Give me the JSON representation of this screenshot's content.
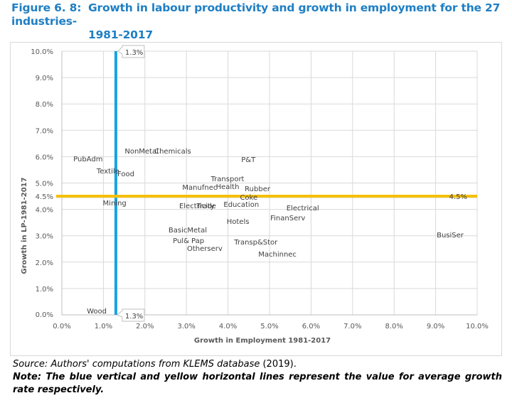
{
  "figure": {
    "number": "Figure 6. 8:",
    "title_line1": "Growth in labour productivity and growth in employment for the 27 industries-",
    "title_line2": "1981-2017"
  },
  "chart_data": {
    "type": "scatter",
    "title": "Growth in labour productivity and growth in employment for the 27 industries-1981-2017",
    "xlabel": "Growth in Employment 1981-2017",
    "ylabel": "Growth in LP-1981-2017",
    "xlim": [
      0,
      10
    ],
    "ylim": [
      0,
      10
    ],
    "x_unit": "%",
    "y_unit": "%",
    "grid": true,
    "x_ticks": [
      "0.0%",
      "1.0%",
      "2.0%",
      "3.0%",
      "4.0%",
      "5.0%",
      "6.0%",
      "7.0%",
      "8.0%",
      "9.0%",
      "10.0%"
    ],
    "y_ticks": [
      "0.0%",
      "1.0%",
      "2.0%",
      "3.0%",
      "4.0%",
      "5.0%",
      "6.0%",
      "7.0%",
      "8.0%",
      "9.0%",
      "10.0%"
    ],
    "extra_y_tick": "4.5%",
    "points": [
      {
        "label": "PubAdm",
        "x": 0.63,
        "y": 5.93
      },
      {
        "label": "Textile",
        "x": 1.11,
        "y": 5.47
      },
      {
        "label": "Food",
        "x": 1.54,
        "y": 5.36
      },
      {
        "label": "NonMetal",
        "x": 1.92,
        "y": 6.22
      },
      {
        "label": "Chemicals",
        "x": 2.67,
        "y": 6.22
      },
      {
        "label": "P&T",
        "x": 4.49,
        "y": 5.9
      },
      {
        "label": "Transport",
        "x": 3.99,
        "y": 5.18
      },
      {
        "label": "Manufnec",
        "x": 3.32,
        "y": 4.85
      },
      {
        "label": "Health",
        "x": 3.99,
        "y": 4.88
      },
      {
        "label": "Rubber",
        "x": 4.71,
        "y": 4.8
      },
      {
        "label": "Coke",
        "x": 4.5,
        "y": 4.47
      },
      {
        "label": "Mining",
        "x": 1.27,
        "y": 4.26
      },
      {
        "label": "Electricity",
        "x": 3.25,
        "y": 4.15
      },
      {
        "label": "Trade",
        "x": 3.48,
        "y": 4.15
      },
      {
        "label": "Education",
        "x": 4.32,
        "y": 4.2
      },
      {
        "label": "Electrical",
        "x": 5.8,
        "y": 4.07
      },
      {
        "label": "FinanServ",
        "x": 5.44,
        "y": 3.69
      },
      {
        "label": "Hotels",
        "x": 4.24,
        "y": 3.56
      },
      {
        "label": "BasicMetal",
        "x": 3.03,
        "y": 3.23
      },
      {
        "label": "Pul& Pap",
        "x": 3.05,
        "y": 2.83
      },
      {
        "label": "Otherserv",
        "x": 3.44,
        "y": 2.53
      },
      {
        "label": "Transp&Stor",
        "x": 4.67,
        "y": 2.78
      },
      {
        "label": "Machinnec",
        "x": 5.19,
        "y": 2.32
      },
      {
        "label": "BusiSer",
        "x": 9.35,
        "y": 3.05
      },
      {
        "label": "Wood",
        "x": 0.84,
        "y": 0.16
      }
    ],
    "reference_lines": [
      {
        "name": "average-employment-growth",
        "orientation": "vertical",
        "value": 1.3,
        "color": "#1aa3e0",
        "labels": [
          "1.3%",
          "1.3%"
        ]
      },
      {
        "name": "average-lp-growth",
        "orientation": "horizontal",
        "value": 4.5,
        "color": "#f5c000",
        "labels": [
          "4.5%"
        ]
      }
    ]
  },
  "notes": {
    "source_prefix": "Source: Authors' computations from KLEMS database",
    "source_year": " (2019).",
    "note_text": "Note: The blue vertical and yellow horizontal lines represent the value for average growth rate respectively."
  }
}
